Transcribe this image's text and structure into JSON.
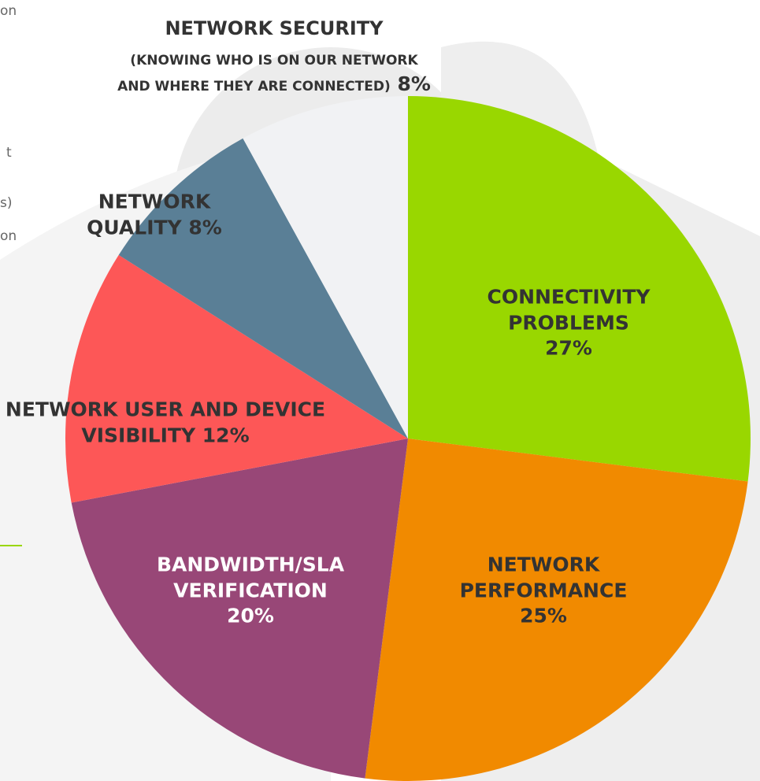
{
  "chart_data": {
    "type": "pie",
    "categories": [
      "CONNECTIVITY PROBLEMS",
      "NETWORK PERFORMANCE",
      "BANDWIDTH/SLA VERIFICATION",
      "NETWORK USER AND DEVICE VISIBILITY",
      "NETWORK QUALITY",
      "NETWORK SECURITY"
    ],
    "values": [
      27,
      25,
      20,
      12,
      8,
      8
    ],
    "value_labels": [
      "27%",
      "25%",
      "20%",
      "12%",
      "8%",
      "8%"
    ],
    "colors": [
      "#99d700",
      "#f18a00",
      "#984777",
      "#fd5757",
      "#5a7f96",
      "#f1f2f4"
    ],
    "annotations": [
      "(KNOWING WHO IS ON OUR NETWORK AND WHERE THEY ARE CONNECTED)"
    ],
    "side_text": [
      "on",
      "t",
      "s)",
      "on"
    ]
  }
}
